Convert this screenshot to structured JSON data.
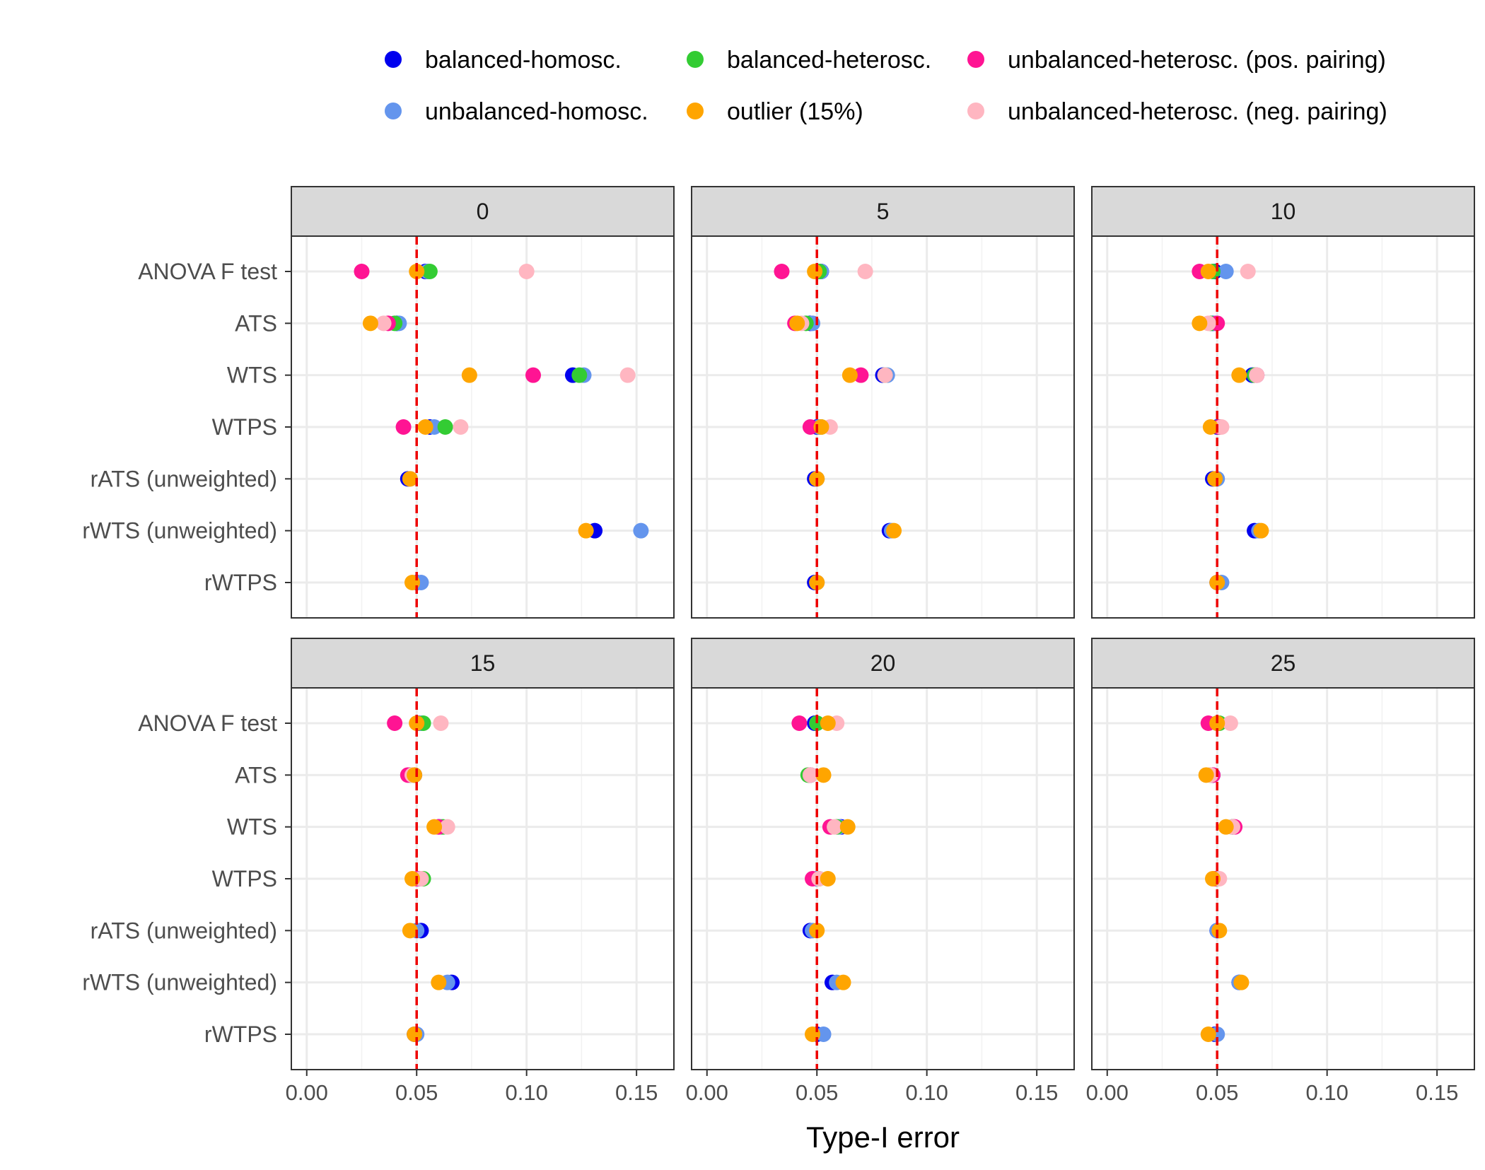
{
  "chart_data": {
    "type": "scatter",
    "subtype": "faceted dot plot",
    "title": "",
    "xlabel": "Type-I error",
    "ylabel": "",
    "xlim": [
      -0.007,
      0.167
    ],
    "x_ticks": [
      0.0,
      0.05,
      0.1,
      0.15
    ],
    "x_tick_labels": [
      "0.00",
      "0.05",
      "0.10",
      "0.15"
    ],
    "reference_line": {
      "x": 0.05,
      "color": "#ee0000",
      "style": "dashed"
    },
    "grid": true,
    "legend_position": "top",
    "categories": [
      "ANOVA F test",
      "ATS",
      "WTS",
      "WTPS",
      "rATS (unweighted)",
      "rWTS (unweighted)",
      "rWTPS"
    ],
    "series": [
      {
        "key": "bh",
        "name": "balanced-homosc.",
        "color": "#0000ee"
      },
      {
        "key": "bhet",
        "name": "balanced-heterosc.",
        "color": "#33cc33"
      },
      {
        "key": "upos",
        "name": "unbalanced-heterosc. (pos. pairing)",
        "color": "#ff1493"
      },
      {
        "key": "uh",
        "name": "unbalanced-homosc.",
        "color": "#6495ed"
      },
      {
        "key": "out",
        "name": "outlier (15%)",
        "color": "#ffa500"
      },
      {
        "key": "uneg",
        "name": "unbalanced-heterosc. (neg. pairing)",
        "color": "#ffb6c1"
      }
    ],
    "draw_order": [
      "bh",
      "uh",
      "bhet",
      "upos",
      "uneg",
      "out"
    ],
    "facets": [
      {
        "label": "0",
        "values": [
          {
            "bh": 0.054,
            "uh": 0.055,
            "bhet": 0.056,
            "upos": 0.025,
            "uneg": 0.1,
            "out": 0.05
          },
          {
            "bh": 0.041,
            "uh": 0.042,
            "bhet": 0.04,
            "upos": 0.037,
            "uneg": 0.035,
            "out": 0.029
          },
          {
            "bh": 0.121,
            "uh": 0.126,
            "bhet": 0.124,
            "upos": 0.103,
            "uneg": 0.146,
            "out": 0.074
          },
          {
            "bh": 0.056,
            "uh": 0.058,
            "bhet": 0.063,
            "upos": 0.044,
            "uneg": 0.07,
            "out": 0.054
          },
          {
            "bh": 0.046,
            "uh": 0.047,
            "bhet": null,
            "upos": null,
            "uneg": null,
            "out": 0.047
          },
          {
            "bh": 0.131,
            "uh": 0.152,
            "bhet": null,
            "upos": null,
            "uneg": null,
            "out": 0.127
          },
          {
            "bh": 0.05,
            "uh": 0.052,
            "bhet": null,
            "upos": null,
            "uneg": null,
            "out": 0.048
          }
        ]
      },
      {
        "label": "5",
        "values": [
          {
            "bh": 0.052,
            "uh": 0.052,
            "bhet": 0.051,
            "upos": 0.034,
            "uneg": 0.072,
            "out": 0.049
          },
          {
            "bh": 0.047,
            "uh": 0.048,
            "bhet": 0.045,
            "upos": 0.04,
            "uneg": 0.043,
            "out": 0.041
          },
          {
            "bh": 0.08,
            "uh": 0.082,
            "bhet": 0.081,
            "upos": 0.07,
            "uneg": 0.081,
            "out": 0.065
          },
          {
            "bh": 0.05,
            "uh": 0.051,
            "bhet": 0.052,
            "upos": 0.047,
            "uneg": 0.056,
            "out": 0.052
          },
          {
            "bh": 0.049,
            "uh": 0.05,
            "bhet": null,
            "upos": null,
            "uneg": null,
            "out": 0.05
          },
          {
            "bh": 0.083,
            "uh": 0.084,
            "bhet": null,
            "upos": null,
            "uneg": null,
            "out": 0.085
          },
          {
            "bh": 0.049,
            "uh": 0.05,
            "bhet": null,
            "upos": null,
            "uneg": null,
            "out": 0.05
          }
        ]
      },
      {
        "label": "10",
        "values": [
          {
            "bh": 0.049,
            "uh": 0.054,
            "bhet": 0.048,
            "upos": 0.042,
            "uneg": 0.064,
            "out": 0.046
          },
          {
            "bh": 0.048,
            "uh": 0.049,
            "bhet": 0.047,
            "upos": 0.05,
            "uneg": 0.046,
            "out": 0.042
          },
          {
            "bh": 0.066,
            "uh": 0.068,
            "bhet": 0.067,
            "upos": 0.068,
            "uneg": 0.068,
            "out": 0.06
          },
          {
            "bh": 0.05,
            "uh": 0.051,
            "bhet": 0.051,
            "upos": 0.051,
            "uneg": 0.052,
            "out": 0.047
          },
          {
            "bh": 0.048,
            "uh": 0.05,
            "bhet": null,
            "upos": null,
            "uneg": null,
            "out": 0.049
          },
          {
            "bh": 0.067,
            "uh": 0.069,
            "bhet": null,
            "upos": null,
            "uneg": null,
            "out": 0.07
          },
          {
            "bh": 0.05,
            "uh": 0.052,
            "bhet": null,
            "upos": null,
            "uneg": null,
            "out": 0.05
          }
        ]
      },
      {
        "label": "15",
        "values": [
          {
            "bh": 0.051,
            "uh": 0.052,
            "bhet": 0.053,
            "upos": 0.04,
            "uneg": 0.061,
            "out": 0.05
          },
          {
            "bh": 0.049,
            "uh": 0.048,
            "bhet": 0.047,
            "upos": 0.046,
            "uneg": 0.048,
            "out": 0.049
          },
          {
            "bh": 0.06,
            "uh": 0.061,
            "bhet": 0.062,
            "upos": 0.06,
            "uneg": 0.064,
            "out": 0.058
          },
          {
            "bh": 0.051,
            "uh": 0.051,
            "bhet": 0.053,
            "upos": 0.05,
            "uneg": 0.052,
            "out": 0.048
          },
          {
            "bh": 0.052,
            "uh": 0.05,
            "bhet": null,
            "upos": null,
            "uneg": null,
            "out": 0.047
          },
          {
            "bh": 0.066,
            "uh": 0.064,
            "bhet": null,
            "upos": null,
            "uneg": null,
            "out": 0.06
          },
          {
            "bh": 0.049,
            "uh": 0.05,
            "bhet": null,
            "upos": null,
            "uneg": null,
            "out": 0.049
          }
        ]
      },
      {
        "label": "20",
        "values": [
          {
            "bh": 0.049,
            "uh": 0.05,
            "bhet": 0.05,
            "upos": 0.042,
            "uneg": 0.059,
            "out": 0.055
          },
          {
            "bh": 0.047,
            "uh": 0.047,
            "bhet": 0.046,
            "upos": 0.047,
            "uneg": 0.047,
            "out": 0.053
          },
          {
            "bh": 0.061,
            "uh": 0.06,
            "bhet": 0.059,
            "upos": 0.056,
            "uneg": 0.058,
            "out": 0.064
          },
          {
            "bh": 0.05,
            "uh": 0.05,
            "bhet": 0.051,
            "upos": 0.048,
            "uneg": 0.051,
            "out": 0.055
          },
          {
            "bh": 0.047,
            "uh": 0.048,
            "bhet": null,
            "upos": null,
            "uneg": null,
            "out": 0.05
          },
          {
            "bh": 0.057,
            "uh": 0.059,
            "bhet": null,
            "upos": null,
            "uneg": null,
            "out": 0.062
          },
          {
            "bh": 0.05,
            "uh": 0.053,
            "bhet": null,
            "upos": null,
            "uneg": null,
            "out": 0.048
          }
        ]
      },
      {
        "label": "25",
        "values": [
          {
            "bh": 0.05,
            "uh": 0.05,
            "bhet": 0.051,
            "upos": 0.046,
            "uneg": 0.056,
            "out": 0.05
          },
          {
            "bh": 0.048,
            "uh": 0.048,
            "bhet": 0.047,
            "upos": 0.048,
            "uneg": 0.047,
            "out": 0.045
          },
          {
            "bh": 0.057,
            "uh": 0.057,
            "bhet": 0.057,
            "upos": 0.058,
            "uneg": 0.057,
            "out": 0.054
          },
          {
            "bh": 0.05,
            "uh": 0.05,
            "bhet": 0.05,
            "upos": 0.049,
            "uneg": 0.051,
            "out": 0.048
          },
          {
            "bh": 0.05,
            "uh": 0.05,
            "bhet": null,
            "upos": null,
            "uneg": null,
            "out": 0.051
          },
          {
            "bh": 0.06,
            "uh": 0.06,
            "bhet": null,
            "upos": null,
            "uneg": null,
            "out": 0.061
          },
          {
            "bh": 0.049,
            "uh": 0.05,
            "bhet": null,
            "upos": null,
            "uneg": null,
            "out": 0.046
          }
        ]
      }
    ]
  }
}
